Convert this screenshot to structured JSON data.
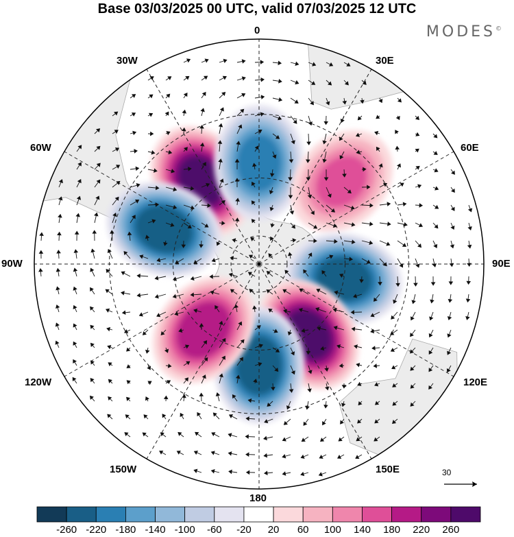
{
  "title": "Base 03/03/2025 00 UTC, valid 07/03/2025 12 UTC",
  "brand": {
    "name": "MODES",
    "mark": "©"
  },
  "map": {
    "projection": "south-polar-stereographic",
    "longitude_labels": {
      "top": "0",
      "bottom": "180",
      "left": "90W",
      "right": "90E",
      "nw1": "30W",
      "nw2": "60W",
      "ne1": "30E",
      "ne2": "60E",
      "sw1": "120W",
      "sw2": "150W",
      "se1": "120E",
      "se2": "150E"
    },
    "land_color": "#ececec",
    "anomalies": [
      {
        "lon": -35,
        "lat": -55,
        "value": 270
      },
      {
        "lon": 0,
        "lat": -55,
        "value": -190
      },
      {
        "lon": -70,
        "lat": -55,
        "value": -250
      },
      {
        "lon": 45,
        "lat": -50,
        "value": 140
      },
      {
        "lon": 100,
        "lat": -60,
        "value": -240
      },
      {
        "lon": 145,
        "lat": -60,
        "value": 270
      },
      {
        "lon": 180,
        "lat": -55,
        "value": -250
      },
      {
        "lon": -140,
        "lat": -60,
        "value": 210
      }
    ]
  },
  "colorbar": {
    "ticks": [
      "-260",
      "-220",
      "-180",
      "-140",
      "-100",
      "-60",
      "-20",
      "20",
      "60",
      "100",
      "140",
      "180",
      "220",
      "260"
    ],
    "colors": [
      "#123a57",
      "#195e86",
      "#2a7fb3",
      "#5c9fcb",
      "#91b8d9",
      "#c0cce3",
      "#e4e3f0",
      "#ffffff",
      "#fbd9dc",
      "#f6b3c1",
      "#ef86ac",
      "#df4f98",
      "#b51a86",
      "#7d0a7a",
      "#4e0a6a"
    ]
  },
  "vector_reference": {
    "label": "30"
  }
}
